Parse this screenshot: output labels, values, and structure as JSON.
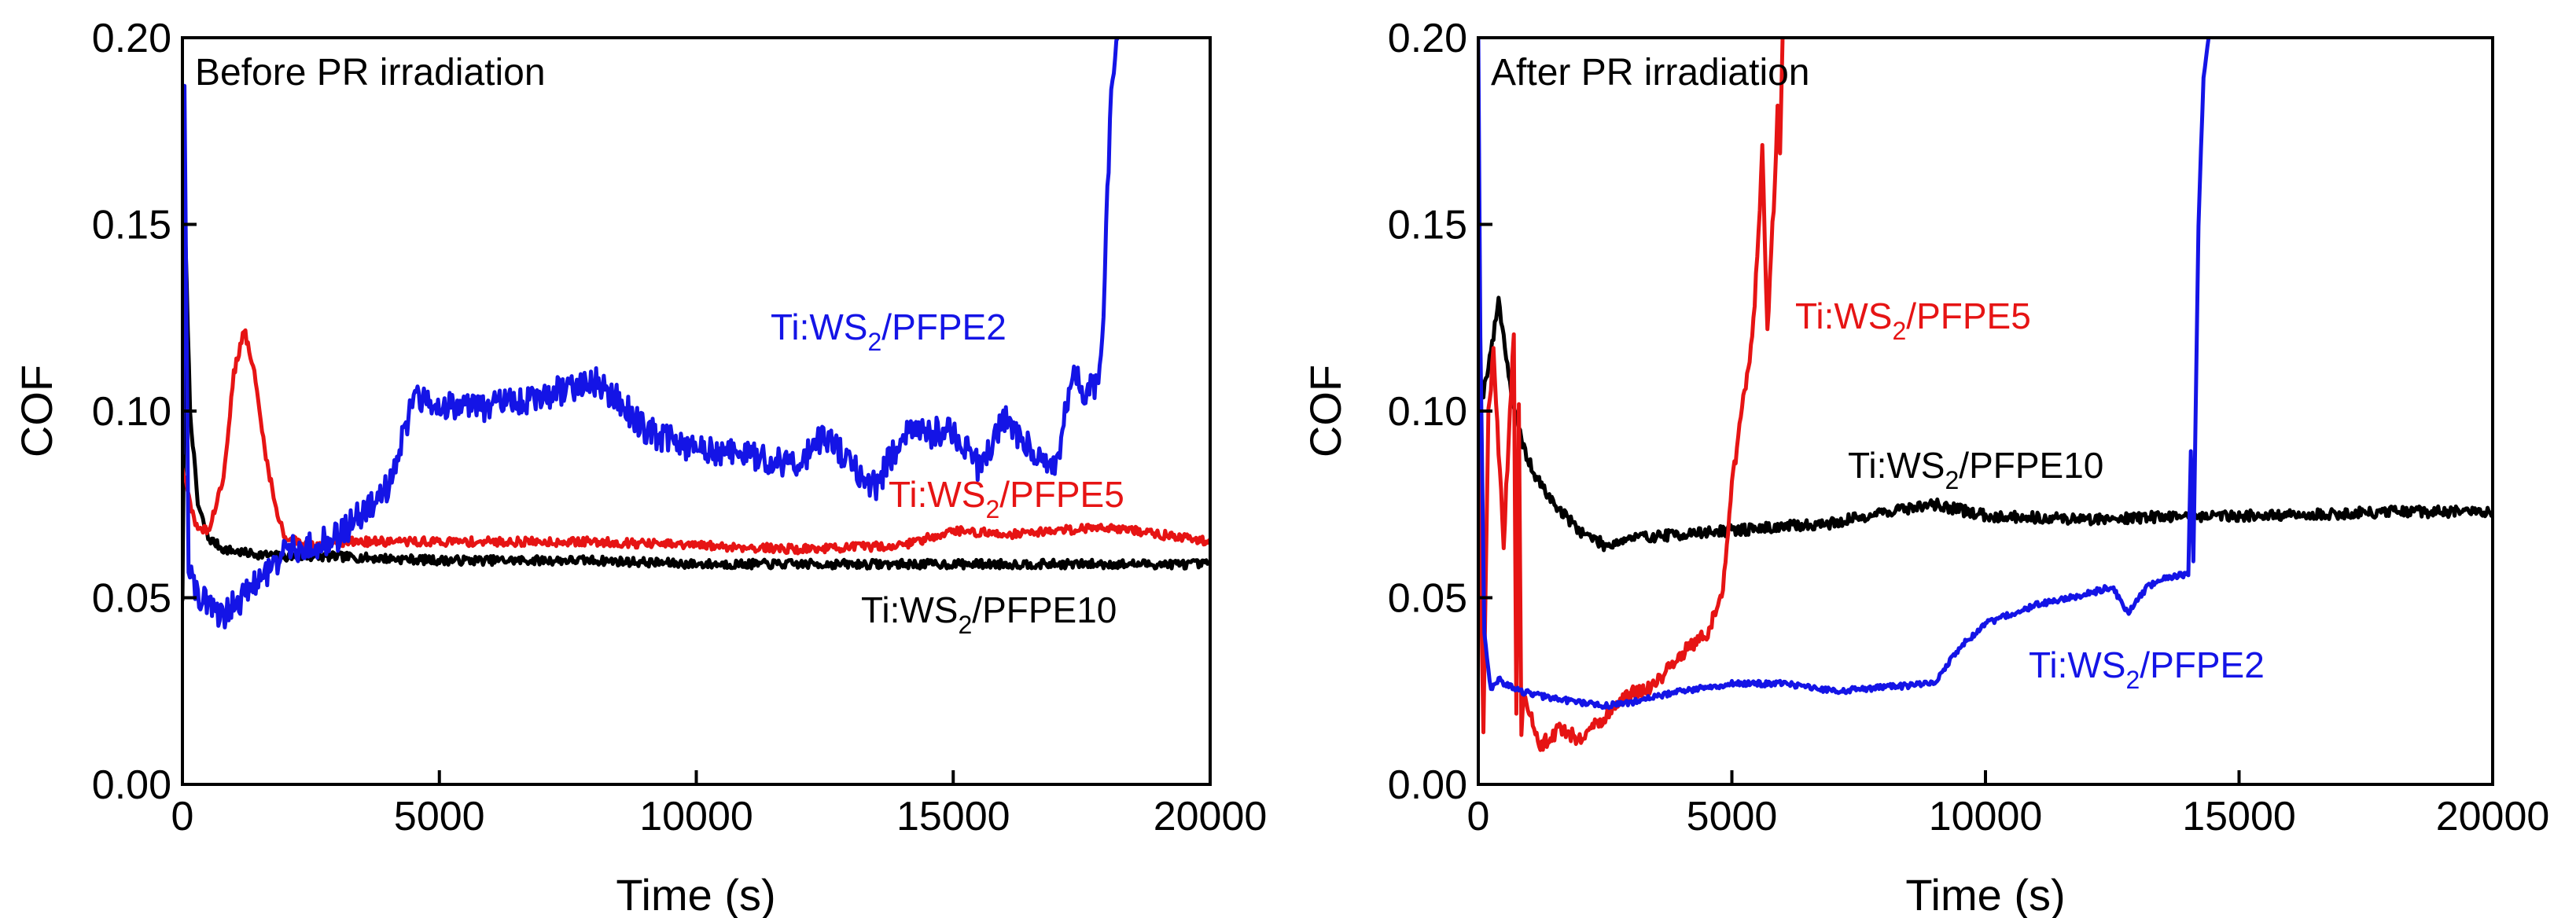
{
  "colors": {
    "blue": "#1414e6",
    "red": "#e61414",
    "black": "#000000"
  },
  "chart_data": [
    {
      "type": "line",
      "title": "Before PR irradiation",
      "xlabel": "Time (s)",
      "ylabel": "COF",
      "xlim": [
        0,
        20000
      ],
      "ylim": [
        0,
        0.2
      ],
      "xticks": [
        0,
        5000,
        10000,
        15000,
        20000
      ],
      "xtick_labels": [
        "0",
        "5000",
        "10000",
        "15000",
        "20000"
      ],
      "yticks": [
        0,
        0.05,
        0.1,
        0.15,
        0.2
      ],
      "ytick_labels": [
        "0.00",
        "0.05",
        "0.10",
        "0.15",
        "0.20"
      ],
      "series": [
        {
          "name": "Ti:WS2/PFPE10",
          "label_main": "Ti:WS",
          "label_sub": "2",
          "label_rest": "/PFPE10",
          "color": "#000000",
          "noise": 0.0012,
          "x": [
            0,
            60,
            150,
            300,
            500,
            800,
            1200,
            2000,
            3000,
            5000,
            8000,
            10000,
            12000,
            15000,
            17000,
            20000
          ],
          "y": [
            0.05,
            0.145,
            0.1,
            0.075,
            0.066,
            0.063,
            0.062,
            0.061,
            0.061,
            0.06,
            0.06,
            0.059,
            0.059,
            0.059,
            0.059,
            0.059
          ]
        },
        {
          "name": "Ti:WS2/PFPE5",
          "label_main": "Ti:WS",
          "label_sub": "2",
          "label_rest": "/PFPE5",
          "color": "#e61414",
          "noise": 0.0012,
          "x": [
            0,
            100,
            300,
            500,
            800,
            1000,
            1200,
            1400,
            1600,
            1800,
            2000,
            2500,
            3000,
            5000,
            8000,
            10000,
            12000,
            14000,
            15000,
            16000,
            17000,
            18000,
            19000,
            20000
          ],
          "y": [
            0.085,
            0.078,
            0.068,
            0.068,
            0.082,
            0.11,
            0.122,
            0.11,
            0.09,
            0.075,
            0.066,
            0.064,
            0.065,
            0.065,
            0.065,
            0.064,
            0.063,
            0.064,
            0.068,
            0.067,
            0.068,
            0.069,
            0.067,
            0.065
          ]
        },
        {
          "name": "Ti:WS2/PFPE2",
          "label_main": "Ti:WS",
          "label_sub": "2",
          "label_rest": "/PFPE2",
          "color": "#1414e6",
          "noise": 0.004,
          "x": [
            0,
            40,
            120,
            300,
            800,
            1500,
            2000,
            3000,
            4000,
            4500,
            5000,
            6000,
            7000,
            8000,
            8500,
            9000,
            9500,
            10000,
            11000,
            12000,
            12500,
            13000,
            13500,
            14000,
            15000,
            15500,
            16000,
            16500,
            17000,
            17300,
            17600,
            17800,
            17900,
            18000,
            18100,
            18200
          ],
          "y": [
            0.09,
            0.19,
            0.06,
            0.05,
            0.045,
            0.055,
            0.062,
            0.066,
            0.08,
            0.103,
            0.102,
            0.101,
            0.104,
            0.108,
            0.103,
            0.095,
            0.092,
            0.09,
            0.088,
            0.086,
            0.094,
            0.085,
            0.08,
            0.093,
            0.095,
            0.085,
            0.098,
            0.09,
            0.085,
            0.11,
            0.105,
            0.108,
            0.118,
            0.16,
            0.19,
            0.2
          ]
        }
      ],
      "annotations": [
        {
          "series": "Ti:WS2/PFPE2"
        },
        {
          "series": "Ti:WS2/PFPE5"
        },
        {
          "series": "Ti:WS2/PFPE10"
        }
      ]
    },
    {
      "type": "line",
      "title": "After PR irradiation",
      "xlabel": "Time (s)",
      "ylabel": "COF",
      "xlim": [
        0,
        20000
      ],
      "ylim": [
        0,
        0.2
      ],
      "xticks": [
        0,
        5000,
        10000,
        15000,
        20000
      ],
      "xtick_labels": [
        "0",
        "5000",
        "10000",
        "15000",
        "20000"
      ],
      "yticks": [
        0,
        0.05,
        0.1,
        0.15,
        0.2
      ],
      "ytick_labels": [
        "0.00",
        "0.05",
        "0.10",
        "0.15",
        "0.20"
      ],
      "series": [
        {
          "name": "Ti:WS2/PFPE10",
          "label_main": "Ti:WS",
          "label_sub": "2",
          "label_rest": "/PFPE10",
          "color": "#000000",
          "noise": 0.0015,
          "x": [
            0,
            100,
            300,
            400,
            500,
            700,
            900,
            1100,
            1500,
            2000,
            2500,
            3000,
            4000,
            5000,
            6000,
            7000,
            8000,
            9000,
            10000,
            12000,
            14000,
            16000,
            18000,
            20000
          ],
          "y": [
            0.11,
            0.105,
            0.12,
            0.13,
            0.12,
            0.1,
            0.09,
            0.083,
            0.075,
            0.068,
            0.064,
            0.066,
            0.067,
            0.068,
            0.069,
            0.07,
            0.073,
            0.075,
            0.072,
            0.071,
            0.072,
            0.072,
            0.073,
            0.073
          ]
        },
        {
          "name": "Ti:WS2/PFPE5",
          "label_main": "Ti:WS",
          "label_sub": "2",
          "label_rest": "/PFPE5",
          "color": "#e61414",
          "noise": 0.002,
          "x": [
            0,
            100,
            200,
            300,
            500,
            700,
            750,
            800,
            850,
            900,
            1200,
            1600,
            2000,
            2500,
            3000,
            3500,
            4000,
            4500,
            4800,
            5000,
            5200,
            5400,
            5500,
            5600,
            5700,
            5800,
            5850,
            5900,
            5950,
            6000
          ],
          "y": [
            0.1,
            0.015,
            0.1,
            0.115,
            0.065,
            0.12,
            0.02,
            0.1,
            0.015,
            0.025,
            0.01,
            0.015,
            0.012,
            0.018,
            0.024,
            0.027,
            0.035,
            0.04,
            0.05,
            0.08,
            0.1,
            0.12,
            0.14,
            0.17,
            0.12,
            0.15,
            0.16,
            0.18,
            0.17,
            0.2
          ]
        },
        {
          "name": "Ti:WS2/PFPE2",
          "label_main": "Ti:WS",
          "label_sub": "2",
          "label_rest": "/PFPE2",
          "color": "#1414e6",
          "noise": 0.0008,
          "x": [
            0,
            40,
            120,
            250,
            400,
            800,
            1500,
            2500,
            3000,
            4000,
            5000,
            6000,
            7000,
            8000,
            9000,
            9300,
            9600,
            10000,
            11000,
            12000,
            12500,
            12800,
            13200,
            13500,
            13800,
            14000,
            14050,
            14100,
            14200,
            14300,
            14400
          ],
          "y": [
            0.2,
            0.12,
            0.04,
            0.025,
            0.028,
            0.025,
            0.023,
            0.021,
            0.022,
            0.025,
            0.027,
            0.027,
            0.025,
            0.026,
            0.027,
            0.033,
            0.038,
            0.043,
            0.048,
            0.051,
            0.053,
            0.046,
            0.053,
            0.055,
            0.056,
            0.056,
            0.09,
            0.06,
            0.15,
            0.19,
            0.2
          ]
        }
      ],
      "annotations": [
        {
          "series": "Ti:WS2/PFPE5"
        },
        {
          "series": "Ti:WS2/PFPE10"
        },
        {
          "series": "Ti:WS2/PFPE2"
        }
      ]
    }
  ]
}
